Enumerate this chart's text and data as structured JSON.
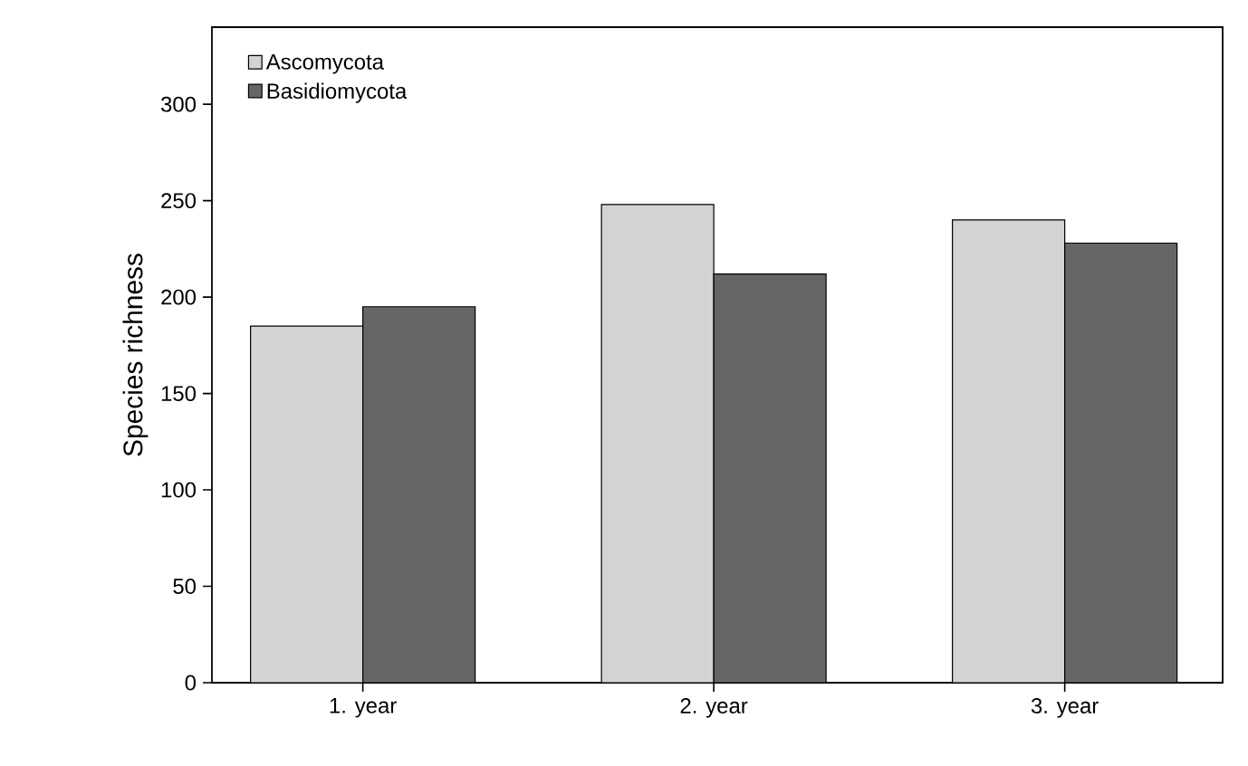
{
  "chart_data": {
    "type": "bar",
    "ylabel": "Species richness",
    "categories": [
      "1. year",
      "2. year",
      "3. year"
    ],
    "series": [
      {
        "name": "Ascomycota",
        "color": "#d3d3d3",
        "values": [
          185,
          248,
          240
        ]
      },
      {
        "name": "Basidiomycota",
        "color": "#666666",
        "values": [
          195,
          212,
          228
        ]
      }
    ],
    "ylim": [
      0,
      340
    ],
    "yticks": [
      0,
      50,
      100,
      150,
      200,
      250,
      300
    ],
    "grid": false,
    "legend": "top left"
  }
}
